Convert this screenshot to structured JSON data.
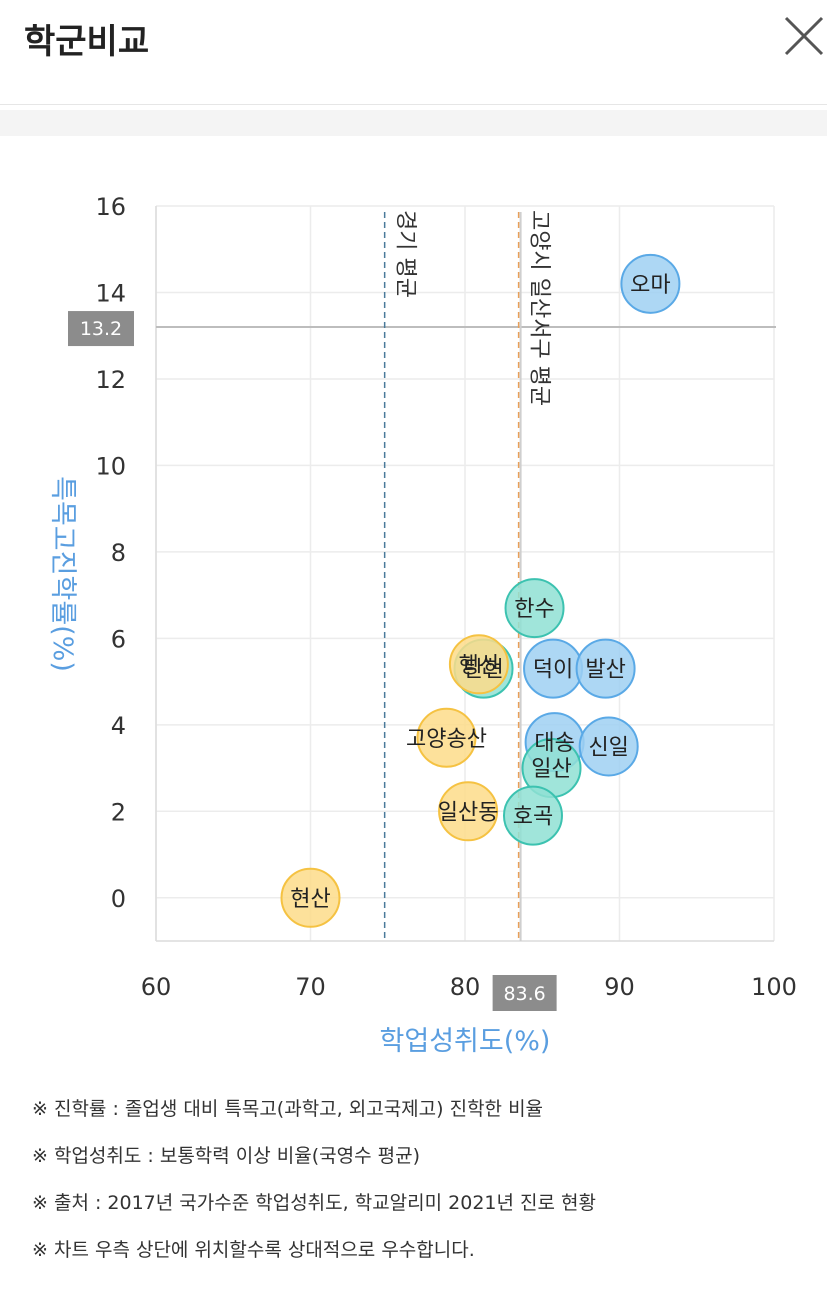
{
  "header": {
    "title": "학군비교"
  },
  "colors": {
    "blue": "#9fd0f2",
    "blue_stroke": "#5aa9e6",
    "teal": "#8fe0d4",
    "teal_stroke": "#3cc2b0",
    "yellow": "#fddc8a",
    "yellow_stroke": "#f5c242",
    "axis_label": "#5a9ee0",
    "ref_box": "#8c8c8c",
    "state_avg_line": "#4a7a9a",
    "district_avg_line": "#e8a05a"
  },
  "chart_data": {
    "type": "scatter",
    "xlabel": "학업성취도(%)",
    "ylabel": "특목고진학률(%)",
    "xlim": [
      60,
      100
    ],
    "ylim": [
      -1,
      16
    ],
    "xticks": [
      60,
      70,
      80,
      90,
      100
    ],
    "yticks": [
      0,
      2,
      4,
      6,
      8,
      10,
      12,
      14,
      16
    ],
    "grid": true,
    "reference_lines": [
      {
        "orientation": "vertical",
        "x": 74.8,
        "label": "경기 평균"
      },
      {
        "orientation": "vertical",
        "x": 83.6,
        "label": "고양시 일산서구 평균"
      },
      {
        "orientation": "horizontal",
        "y": 13.2
      }
    ],
    "ref_boxes": {
      "x_value": "83.6",
      "y_value": "13.2"
    },
    "points": [
      {
        "label": "오마",
        "x": 92.0,
        "y": 14.2,
        "group": "blue"
      },
      {
        "label": "한수",
        "x": 84.5,
        "y": 6.7,
        "group": "teal"
      },
      {
        "label": "덕이",
        "x": 85.7,
        "y": 5.3,
        "group": "blue"
      },
      {
        "label": "발산",
        "x": 89.1,
        "y": 5.3,
        "group": "blue"
      },
      {
        "label": "탄현",
        "x": 81.2,
        "y": 5.3,
        "group": "teal"
      },
      {
        "label": "행신",
        "x": 80.9,
        "y": 5.4,
        "group": "yellow"
      },
      {
        "label": "고양송산",
        "x": 78.8,
        "y": 3.7,
        "group": "yellow"
      },
      {
        "label": "대송",
        "x": 85.8,
        "y": 3.6,
        "group": "blue"
      },
      {
        "label": "신일",
        "x": 89.3,
        "y": 3.5,
        "group": "blue"
      },
      {
        "label": "일산",
        "x": 85.6,
        "y": 3.0,
        "group": "teal"
      },
      {
        "label": "일산동",
        "x": 80.2,
        "y": 2.0,
        "group": "yellow"
      },
      {
        "label": "호곡",
        "x": 84.4,
        "y": 1.9,
        "group": "teal"
      },
      {
        "label": "현산",
        "x": 70.0,
        "y": 0.0,
        "group": "yellow"
      }
    ]
  },
  "notes": [
    "※ 진학률 : 졸업생 대비 특목고(과학고, 외고국제고) 진학한 비율",
    "※ 학업성취도 : 보통학력 이상 비율(국영수 평균)",
    "※ 출처 : 2017년 국가수준 학업성취도, 학교알리미 2021년 진로 현황",
    "※ 차트 우측 상단에 위치할수록 상대적으로 우수합니다."
  ]
}
